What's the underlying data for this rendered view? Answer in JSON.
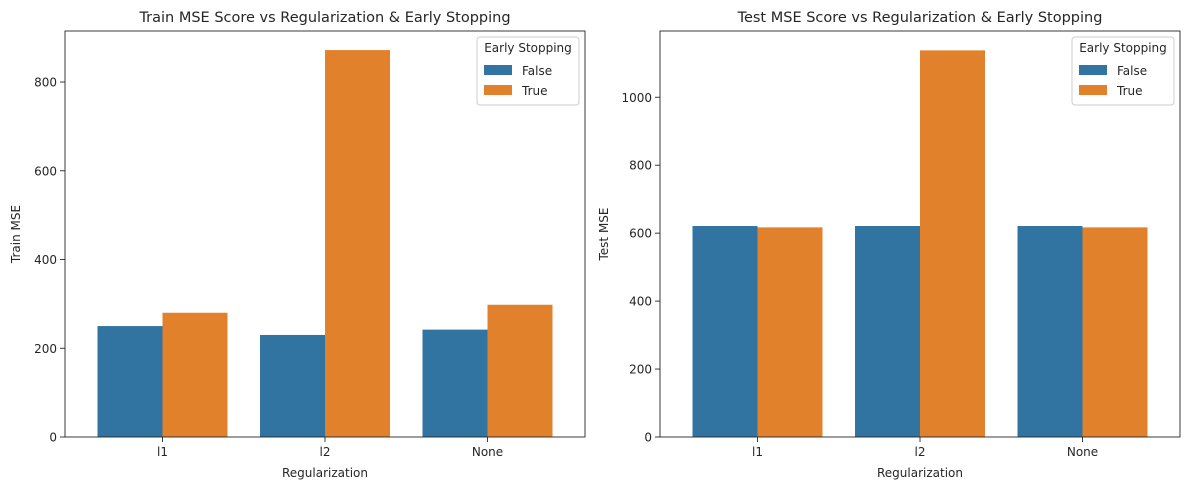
{
  "chart_data": [
    {
      "type": "bar",
      "title": "Train MSE Score vs Regularization & Early Stopping",
      "xlabel": "Regularization",
      "ylabel": "Train MSE",
      "categories": [
        "l1",
        "l2",
        "None"
      ],
      "series": [
        {
          "name": "False",
          "values": [
            250,
            230,
            242
          ],
          "color": "#3274a1"
        },
        {
          "name": "True",
          "values": [
            280,
            872,
            298
          ],
          "color": "#e1812c"
        }
      ],
      "ylim": [
        0,
        915
      ],
      "yticks": [
        0,
        200,
        400,
        600,
        800
      ],
      "legend": {
        "title": "Early Stopping",
        "position": "top-right"
      },
      "grid": false
    },
    {
      "type": "bar",
      "title": "Test MSE Score vs Regularization & Early Stopping",
      "xlabel": "Regularization",
      "ylabel": "Test MSE",
      "categories": [
        "l1",
        "l2",
        "None"
      ],
      "series": [
        {
          "name": "False",
          "values": [
            621,
            621,
            621
          ],
          "color": "#3274a1"
        },
        {
          "name": "True",
          "values": [
            617,
            1138,
            617
          ],
          "color": "#e1812c"
        }
      ],
      "ylim": [
        0,
        1195
      ],
      "yticks": [
        0,
        200,
        400,
        600,
        800,
        1000
      ],
      "legend": {
        "title": "Early Stopping",
        "position": "top-right"
      },
      "grid": false
    }
  ]
}
